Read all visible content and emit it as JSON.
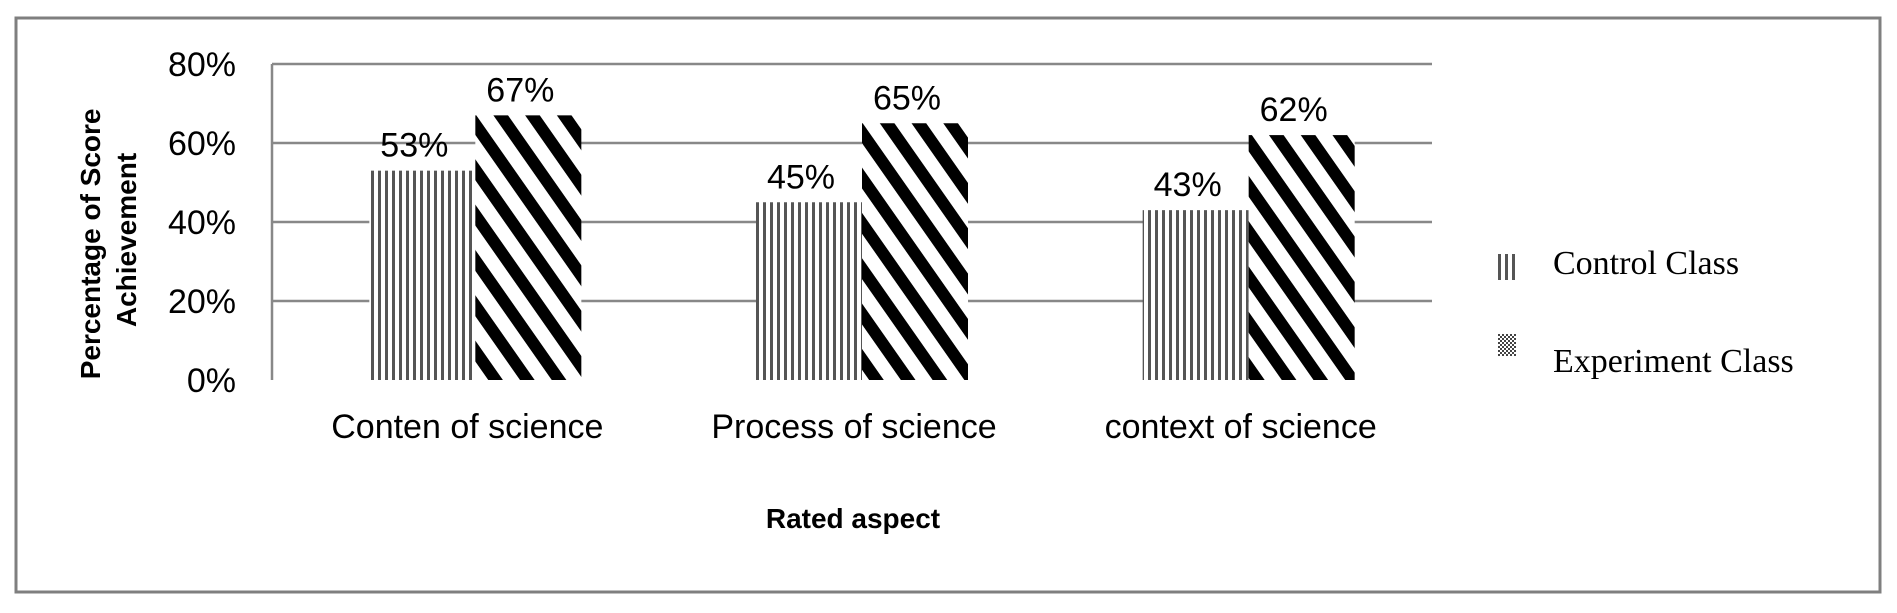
{
  "chart_data": {
    "type": "bar",
    "categories": [
      "Conten of science",
      "Process of science",
      "context of science"
    ],
    "series": [
      {
        "name": "Control Class",
        "values": [
          53,
          45,
          43
        ],
        "labels": [
          "53%",
          "45%",
          "43%"
        ],
        "pattern": "vertical-stripes"
      },
      {
        "name": "Experiment Class",
        "values": [
          67,
          65,
          62
        ],
        "labels": [
          "67%",
          "65%",
          "62%"
        ],
        "pattern": "diagonal-stripes"
      }
    ],
    "y_ticks": [
      {
        "value": 0,
        "label": "0%"
      },
      {
        "value": 20,
        "label": "20%"
      },
      {
        "value": 40,
        "label": "40%"
      },
      {
        "value": 60,
        "label": "60%"
      },
      {
        "value": 80,
        "label": "80%"
      }
    ],
    "ylim": [
      0,
      80
    ],
    "xlabel": "Rated aspect",
    "ylabel_lines": [
      "Percentage of Score",
      "Achievement"
    ],
    "grid": true,
    "legend_position": "right",
    "colors": {
      "bar_stroke": "#000000",
      "grid": "#888888",
      "frame": "#7f7f7f",
      "text": "#000000"
    }
  }
}
